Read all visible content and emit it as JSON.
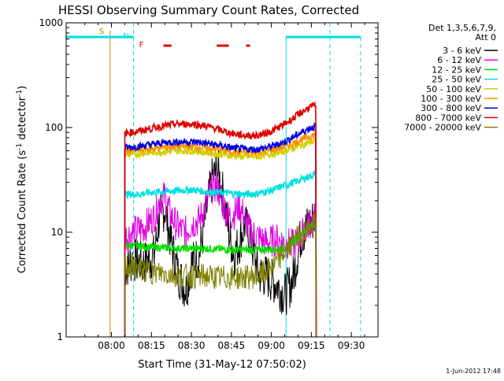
{
  "chart_data": {
    "type": "line",
    "title": "HESSI Observing Summary Count Rates, Corrected",
    "xlabel": "Start Time (31-May-12 07:50:02)",
    "ylabel_main": "Corrected Count Rate (s",
    "ylabel_sup1": "-1",
    "ylabel_mid": " detector",
    "ylabel_sup2": "-1",
    "ylabel_end": ")",
    "yscale": "log",
    "xlim_minutes": [
      -17,
      100
    ],
    "ylim": [
      1,
      1000
    ],
    "x_ticks": [
      {
        "t": 0,
        "label": "08:00"
      },
      {
        "t": 15,
        "label": "08:15"
      },
      {
        "t": 30,
        "label": "08:30"
      },
      {
        "t": 45,
        "label": "08:45"
      },
      {
        "t": 60,
        "label": "09:00"
      },
      {
        "t": 75,
        "label": "09:15"
      },
      {
        "t": 90,
        "label": "09:30"
      }
    ],
    "y_ticks": [
      {
        "v": 1,
        "label": "1"
      },
      {
        "v": 10,
        "label": "10"
      },
      {
        "v": 100,
        "label": "100"
      },
      {
        "v": 1000,
        "label": "1000"
      }
    ],
    "legend_title_1": "Det 1,3,5,6,7,9,",
    "legend_title_2": "Att 0",
    "footer_date": "1-Jun-2012 17:48",
    "flags": [
      {
        "label": "S",
        "color": "#e07000",
        "t": -0.5
      },
      {
        "label": "N",
        "color": "#00e0e0",
        "t": 8.5
      },
      {
        "label": "F",
        "color": "#e00000",
        "t": 14.5
      }
    ],
    "flare_segments_minutes": [
      [
        19.5,
        22.5
      ],
      [
        39.5,
        44.0
      ],
      [
        50.5,
        52.0
      ]
    ],
    "night_boundaries_minutes": [
      8.3,
      65.5,
      82.0,
      93.5
    ],
    "data_start_minutes": 5.0,
    "data_end_minutes": 76.8,
    "series": [
      {
        "name": "3 - 6 keV",
        "color": "#000000",
        "x": [
          5,
          8,
          12,
          16,
          18,
          20,
          22,
          25,
          28,
          30,
          33,
          36,
          38,
          40,
          42,
          44,
          46,
          48,
          50,
          52,
          55,
          58,
          62,
          65,
          68,
          71,
          74,
          76.8
        ],
        "y": [
          4.5,
          5.5,
          5,
          6,
          14,
          17,
          9,
          4,
          2.8,
          5,
          6,
          18,
          34,
          38,
          22,
          10,
          6,
          8,
          12,
          9,
          4,
          3.8,
          3.2,
          2.5,
          3.5,
          9,
          12,
          14
        ]
      },
      {
        "name": "6 - 12 keV",
        "color": "#e000e0",
        "x": [
          5,
          8,
          12,
          16,
          18,
          20,
          22,
          25,
          28,
          30,
          33,
          36,
          38,
          40,
          42,
          44,
          46,
          48,
          50,
          52,
          55,
          58,
          62,
          65,
          68,
          71,
          74,
          76.8
        ],
        "y": [
          9,
          10,
          11,
          14,
          20,
          22,
          15,
          11,
          10,
          12,
          13,
          20,
          28,
          26,
          18,
          14,
          15,
          18,
          14,
          10,
          9,
          8,
          8.5,
          8,
          7.5,
          9,
          12,
          14
        ]
      },
      {
        "name": "12 - 25 keV",
        "color": "#00e000",
        "x": [
          5,
          15,
          25,
          35,
          45,
          55,
          65,
          70,
          74,
          76.8
        ],
        "y": [
          7.5,
          7.2,
          7.0,
          7.0,
          6.8,
          6.8,
          7.0,
          9,
          11,
          12
        ]
      },
      {
        "name": "25 - 50 keV",
        "color": "#00e0e0",
        "x": [
          5,
          10,
          15,
          20,
          25,
          30,
          35,
          40,
          45,
          50,
          55,
          60,
          65,
          70,
          74,
          76.8
        ],
        "y": [
          23,
          23,
          24,
          24.5,
          25,
          25.5,
          24.5,
          24,
          23.5,
          23,
          23.5,
          25,
          28,
          31,
          34,
          36
        ]
      },
      {
        "name": "50 - 100 keV",
        "color": "#d0d000",
        "x": [
          5,
          10,
          15,
          20,
          25,
          30,
          35,
          40,
          45,
          50,
          55,
          60,
          65,
          70,
          74,
          76.8
        ],
        "y": [
          55,
          56,
          58,
          59,
          60,
          60,
          58,
          56,
          54,
          53,
          53,
          56,
          60,
          66,
          72,
          75
        ]
      },
      {
        "name": "100 - 300 keV",
        "color": "#ff9000",
        "x": [
          5,
          10,
          15,
          20,
          25,
          30,
          35,
          40,
          45,
          50,
          55,
          60,
          65,
          70,
          74,
          76.8
        ],
        "y": [
          60,
          61,
          63,
          65,
          66,
          66,
          64,
          62,
          59,
          58,
          58,
          61,
          66,
          74,
          82,
          86
        ]
      },
      {
        "name": "300 - 800 keV",
        "color": "#0000e0",
        "x": [
          5,
          10,
          15,
          20,
          25,
          30,
          35,
          40,
          45,
          50,
          55,
          60,
          65,
          70,
          74,
          76.8
        ],
        "y": [
          64,
          66,
          69,
          72,
          73,
          73,
          71,
          68,
          64,
          62,
          62,
          66,
          73,
          86,
          98,
          102
        ]
      },
      {
        "name": "800 - 7000 keV",
        "color": "#e00000",
        "x": [
          5,
          10,
          15,
          20,
          25,
          30,
          35,
          40,
          45,
          50,
          55,
          60,
          65,
          70,
          74,
          76.8
        ],
        "y": [
          88,
          92,
          98,
          104,
          108,
          108,
          104,
          96,
          88,
          84,
          84,
          92,
          108,
          132,
          155,
          162
        ]
      },
      {
        "name": "7000 - 20000 keV",
        "color": "#808000",
        "x": [
          5,
          10,
          15,
          20,
          25,
          30,
          35,
          40,
          45,
          50,
          55,
          60,
          65,
          70,
          74,
          76.8
        ],
        "y": [
          4.8,
          4.5,
          4.2,
          4.0,
          3.9,
          3.8,
          3.8,
          3.7,
          3.7,
          3.7,
          3.8,
          4.5,
          6.5,
          9,
          11,
          12
        ]
      }
    ]
  }
}
